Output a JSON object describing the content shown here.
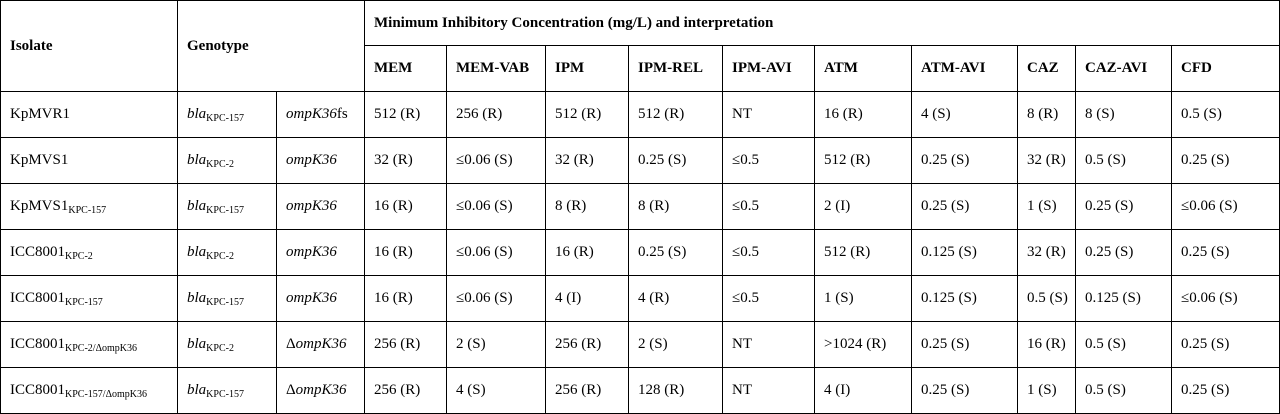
{
  "headers": {
    "isolate": "Isolate",
    "genotype": "Genotype",
    "mic_group": "Minimum Inhibitory Concentration (mg/L) and interpretation",
    "antibiotics": [
      "MEM",
      "MEM-VAB",
      "IPM",
      "IPM-REL",
      "IPM-AVI",
      "ATM",
      "ATM-AVI",
      "CAZ",
      "CAZ-AVI",
      "CFD"
    ]
  },
  "rows": [
    {
      "isolate": "KpMVR1",
      "isolate_sub": "",
      "gene": "bla",
      "gene_sub": "KPC-157",
      "omp_prefix": "",
      "omp": "ompK36",
      "omp_suffix": "fs",
      "mic": [
        "512 (R)",
        "256 (R)",
        "512 (R)",
        "512 (R)",
        "NT",
        "16 (R)",
        "4 (S)",
        "8 (R)",
        "8 (S)",
        "0.5 (S)"
      ]
    },
    {
      "isolate": "KpMVS1",
      "isolate_sub": "",
      "gene": "bla",
      "gene_sub": "KPC-2",
      "omp_prefix": "",
      "omp": "ompK36",
      "omp_suffix": "",
      "mic": [
        "32 (R)",
        "≤0.06 (S)",
        "32 (R)",
        "0.25 (S)",
        "≤0.5",
        "512 (R)",
        "0.25 (S)",
        "32 (R)",
        "0.5 (S)",
        "0.25 (S)"
      ]
    },
    {
      "isolate": "KpMVS1",
      "isolate_sub": "KPC-157",
      "gene": "bla",
      "gene_sub": "KPC-157",
      "omp_prefix": "",
      "omp": "ompK36",
      "omp_suffix": "",
      "mic": [
        "16 (R)",
        "≤0.06 (S)",
        "8 (R)",
        "8 (R)",
        "≤0.5",
        "2 (I)",
        "0.25 (S)",
        "1 (S)",
        "0.25 (S)",
        "≤0.06 (S)"
      ]
    },
    {
      "isolate": "ICC8001",
      "isolate_sub": "KPC-2",
      "gene": "bla",
      "gene_sub": "KPC-2",
      "omp_prefix": "",
      "omp": "ompK36",
      "omp_suffix": "",
      "mic": [
        "16 (R)",
        "≤0.06 (S)",
        "16 (R)",
        "0.25 (S)",
        "≤0.5",
        "512 (R)",
        "0.125 (S)",
        "32 (R)",
        "0.25 (S)",
        "0.25 (S)"
      ]
    },
    {
      "isolate": "ICC8001",
      "isolate_sub": "KPC-157",
      "gene": "bla",
      "gene_sub": "KPC-157",
      "omp_prefix": "",
      "omp": "ompK36",
      "omp_suffix": "",
      "mic": [
        "16 (R)",
        "≤0.06 (S)",
        "4 (I)",
        "4 (R)",
        "≤0.5",
        "1 (S)",
        "0.125 (S)",
        "0.5 (S)",
        "0.125 (S)",
        "≤0.06 (S)"
      ]
    },
    {
      "isolate": "ICC8001",
      "isolate_sub": "KPC-2/ΔompK36",
      "gene": "bla",
      "gene_sub": "KPC-2",
      "omp_prefix": "Δ",
      "omp": "ompK36",
      "omp_suffix": "",
      "mic": [
        "256 (R)",
        "2 (S)",
        "256 (R)",
        "2 (S)",
        "NT",
        ">1024 (R)",
        "0.25 (S)",
        "16 (R)",
        "0.5 (S)",
        "0.25 (S)"
      ]
    },
    {
      "isolate": "ICC8001",
      "isolate_sub": "KPC-157/ΔompK36",
      "gene": "bla",
      "gene_sub": "KPC-157",
      "omp_prefix": "Δ",
      "omp": "ompK36",
      "omp_suffix": "",
      "mic": [
        "256 (R)",
        "4 (S)",
        "256 (R)",
        "128 (R)",
        "NT",
        "4 (I)",
        "0.25 (S)",
        "1 (S)",
        "0.5 (S)",
        "0.25 (S)"
      ]
    }
  ]
}
